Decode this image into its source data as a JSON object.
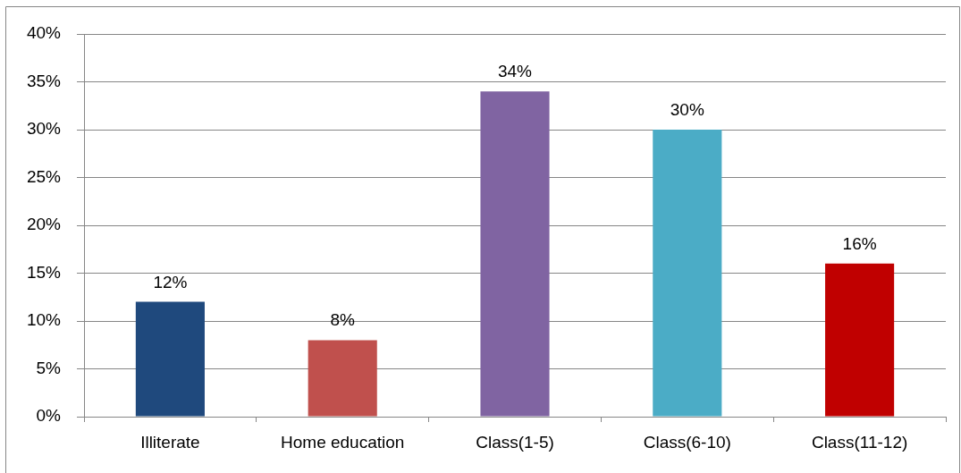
{
  "chart_data": {
    "type": "bar",
    "categories": [
      "Illiterate",
      "Home education",
      "Class(1-5)",
      "Class(6-10)",
      "Class(11-12)"
    ],
    "values": [
      12,
      8,
      34,
      30,
      16
    ],
    "colors": [
      "#1f497d",
      "#c0504d",
      "#8064a2",
      "#4bacc6",
      "#c00000"
    ],
    "value_labels": [
      "12%",
      "8%",
      "34%",
      "30%",
      "16%"
    ],
    "ylim": [
      0,
      40
    ],
    "yticks": [
      {
        "value": 0,
        "label": "0%"
      },
      {
        "value": 5,
        "label": "5%"
      },
      {
        "value": 10,
        "label": "10%"
      },
      {
        "value": 15,
        "label": "15%"
      },
      {
        "value": 20,
        "label": "20%"
      },
      {
        "value": 25,
        "label": "25%"
      },
      {
        "value": 30,
        "label": "30%"
      },
      {
        "value": 35,
        "label": "35%"
      },
      {
        "value": 40,
        "label": "40%"
      }
    ],
    "grid": "y"
  }
}
